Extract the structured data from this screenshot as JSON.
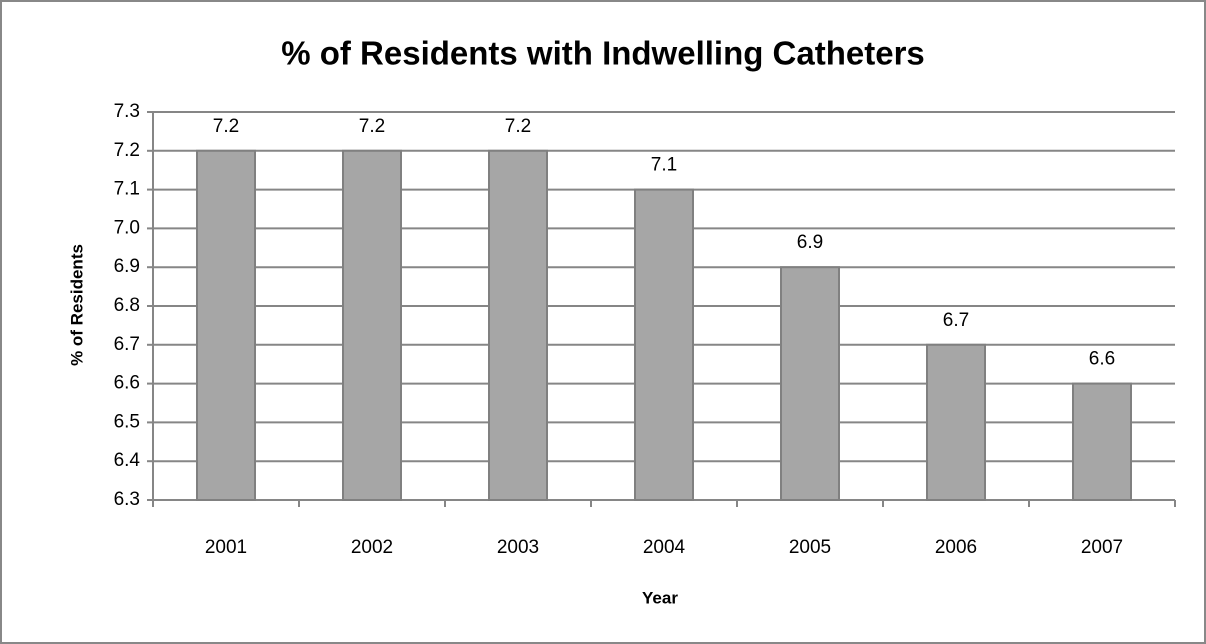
{
  "chart_data": {
    "type": "bar",
    "title": "% of Residents with Indwelling Catheters",
    "x_label": "Year",
    "y_label": "% of Residents",
    "categories": [
      "2001",
      "2002",
      "2003",
      "2004",
      "2005",
      "2006",
      "2007"
    ],
    "values": [
      7.2,
      7.2,
      7.2,
      7.1,
      6.9,
      6.7,
      6.6
    ],
    "color": "#a6a6a6",
    "ylim": [
      6.3,
      7.3
    ],
    "yticks": [
      6.3,
      6.4,
      6.5,
      6.6,
      6.7,
      6.8,
      6.9,
      {
        "value": 7.0,
        "label": "7.0"
      },
      7.1,
      7.2,
      7.3
    ],
    "grid": true
  }
}
